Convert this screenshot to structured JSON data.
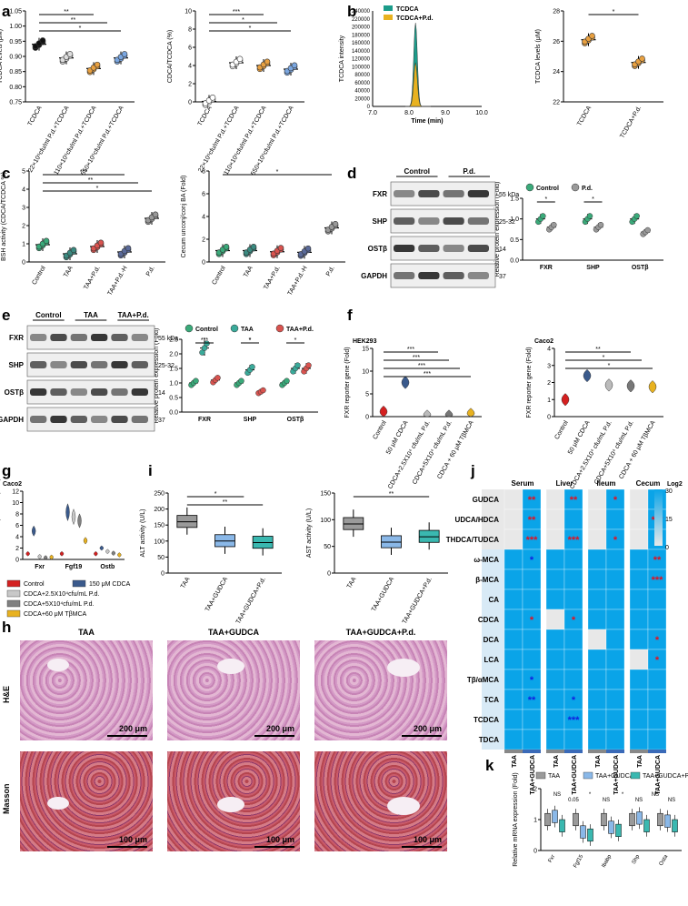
{
  "panels": {
    "a": "a",
    "b": "b",
    "c": "c",
    "d": "d",
    "e": "e",
    "f": "f",
    "g": "g",
    "h": "h",
    "i": "i",
    "j": "j",
    "k": "k"
  },
  "colors": {
    "tcdca_teal": "#1b9c8a",
    "tcdca_pd_yellow": "#e8b220",
    "green": "#3aaa7a",
    "gray": "#9a9a9a",
    "red": "#d9534f",
    "navy": "#3a5a8c",
    "heatmap_high": "#0aa4e8",
    "heatmap_low": "#e8e8e8",
    "sig_red": "#e01020",
    "sig_blue": "#1020e0"
  },
  "chart_data": [
    {
      "id": "a1",
      "type": "scatter",
      "ylabel": "TCDCA levels (μM)",
      "ylim": [
        0.75,
        1.05
      ],
      "yticks": [
        "0.75",
        "0.80",
        "0.85",
        "0.90",
        "0.95",
        "1.00",
        "1.05"
      ],
      "categories": [
        "TCDCA",
        "22×10⁵cfu/ml P.d.+TCDCA",
        "110×10⁵cfu/ml P.d.+TCDCA",
        "550×10⁵cfu/ml P.d.+TCDCA"
      ],
      "series": [
        {
          "values": [
            0.94,
            0.895,
            0.86,
            0.895
          ]
        }
      ],
      "sig": [
        "**",
        "**",
        "*"
      ]
    },
    {
      "id": "a2",
      "type": "scatter",
      "ylabel": "CDCA/TCDCA (%)",
      "ylim": [
        0,
        10
      ],
      "yticks": [
        "0",
        "2",
        "4",
        "6",
        "8",
        "10"
      ],
      "categories": [
        "TCDCA",
        "22×10⁵cfu/ml P.d.+TCDCA",
        "110×10⁵cfu/ml P.d.+TCDCA",
        "550×10⁵cfu/ml P.d.+TCDCA"
      ],
      "series": [
        {
          "values": [
            0.05,
            4.3,
            4.0,
            3.6
          ]
        }
      ],
      "sig": [
        "***",
        "*",
        "*"
      ]
    },
    {
      "id": "b1",
      "type": "area",
      "ylabel": "TCDCA intensity",
      "xlabel": "Time (min)",
      "xticks": [
        "7.0",
        "8.0",
        "9.0",
        "10.0"
      ],
      "yticks": [
        "0",
        "20000",
        "40000",
        "60000",
        "80000",
        "100000",
        "120000",
        "140000",
        "160000",
        "180000",
        "200000",
        "220000",
        "240000"
      ],
      "series": [
        {
          "name": "TCDCA",
          "peak": 210000,
          "center": 8.18
        },
        {
          "name": "TCDCA+P.d.",
          "peak": 110000,
          "center": 8.18
        }
      ]
    },
    {
      "id": "b2",
      "type": "scatter",
      "ylabel": "TCDCA levels (μM)",
      "ylim": [
        22,
        28
      ],
      "yticks": [
        "22",
        "24",
        "26",
        "28"
      ],
      "categories": [
        "TCDCA",
        "TCDCA+P.d."
      ],
      "series": [
        {
          "values": [
            26.1,
            24.6
          ]
        }
      ],
      "sig": [
        "*"
      ]
    },
    {
      "id": "c1",
      "type": "scatter",
      "ylabel": "BSH activity (CDCA/TCDCA %)",
      "ylim": [
        0,
        5
      ],
      "yticks": [
        "0",
        "1",
        "2",
        "3",
        "4",
        "5"
      ],
      "categories": [
        "Control",
        "TAA",
        "TAA+P.d.",
        "TAA+P.d.-H",
        "P.d."
      ],
      "series": [
        {
          "values": [
            0.95,
            0.45,
            0.85,
            0.55,
            2.4
          ]
        }
      ],
      "sig": [
        "***",
        "**",
        "*"
      ]
    },
    {
      "id": "c2",
      "type": "scatter",
      "ylabel": "Cecum unconj/conj BA (Fold)",
      "ylim": [
        0,
        8
      ],
      "yticks": [
        "0",
        "2",
        "4",
        "6",
        "8"
      ],
      "categories": [
        "Control",
        "TAA",
        "TAA+P.d.",
        "TAA+P.d.-H",
        "P.d."
      ],
      "series": [
        {
          "values": [
            1.0,
            1.0,
            0.9,
            0.85,
            3.0
          ]
        }
      ],
      "sig": [
        "*"
      ]
    },
    {
      "id": "d2",
      "type": "scatter",
      "ylabel": "Relative protein expression (Fold)",
      "ylim": [
        0,
        1.5
      ],
      "yticks": [
        "0.0",
        "0.5",
        "1.0",
        "1.5"
      ],
      "categories": [
        "FXR",
        "SHP",
        "OSTβ"
      ],
      "series": [
        {
          "name": "Control",
          "values": [
            1.0,
            1.0,
            1.0
          ]
        },
        {
          "name": "P.d.",
          "values": [
            0.8,
            0.8,
            0.68
          ]
        }
      ],
      "sig": [
        "*",
        "*"
      ]
    },
    {
      "id": "e2",
      "type": "scatter",
      "ylabel": "Relative protein expression (Fold)",
      "ylim": [
        0,
        2.5
      ],
      "yticks": [
        "0.0",
        "0.5",
        "1.0",
        "1.5",
        "2.0",
        "2.5"
      ],
      "categories": [
        "FXR",
        "SHP",
        "OSTβ"
      ],
      "series": [
        {
          "name": "Control",
          "values": [
            1.0,
            1.0,
            1.0
          ]
        },
        {
          "name": "TAA",
          "values": [
            2.2,
            1.45,
            1.5
          ]
        },
        {
          "name": "TAA+P.d.",
          "values": [
            1.1,
            0.7,
            1.5
          ]
        }
      ],
      "sig": [
        "***",
        "*",
        "*",
        "*",
        "*"
      ]
    },
    {
      "id": "f1",
      "type": "violin",
      "title": "HEK293",
      "ylabel": "FXR reporter gene (Fold)",
      "ylim": [
        0,
        15
      ],
      "yticks": [
        "0",
        "5",
        "10",
        "15"
      ],
      "categories": [
        "Control",
        "50 μM CDCA",
        "CDCA+2.5X10⁴ cfu/mL P.d.",
        "CDCA+5X10⁴ cfu/mL P.d.",
        "CDCA + 60 μM TβMCA"
      ],
      "series": [
        {
          "values": [
            1.0,
            7.5,
            0.1,
            0.1,
            0.5
          ]
        }
      ],
      "sig": [
        "***",
        "***",
        "***",
        "***"
      ]
    },
    {
      "id": "f2",
      "type": "violin",
      "title": "Caco2",
      "ylabel": "FXR reporter gene (Fold)",
      "ylim": [
        0,
        4
      ],
      "yticks": [
        "0",
        "1",
        "2",
        "3",
        "4"
      ],
      "categories": [
        "Control",
        "50 μM CDCA",
        "CDCA+2.5X10⁴ cfu/mL P.d.",
        "CDCA+5X10⁴ cfu/mL P.d.",
        "CDCA + 60 μM TβMCA"
      ],
      "series": [
        {
          "values": [
            1.0,
            2.4,
            1.85,
            1.8,
            1.75
          ]
        }
      ],
      "sig": [
        "**",
        "*",
        "*"
      ]
    },
    {
      "id": "g",
      "type": "violin",
      "title": "Caco2",
      "ylabel": "Relative mRNA expression (Fold)",
      "ylim": [
        0,
        12
      ],
      "yticks": [
        "0",
        "2",
        "4",
        "6",
        "8",
        "10",
        "12"
      ],
      "categories": [
        "Fxr",
        "Fgf19",
        "Ostb"
      ],
      "series": [
        {
          "name": "Control",
          "values": [
            1.0,
            1.0,
            1.0
          ]
        },
        {
          "name": "150 μM CDCA",
          "values": [
            5.0,
            8.3,
            2.0
          ]
        },
        {
          "name": "CDCA+2.5X10⁴cfu/mL P.d.",
          "values": [
            0.5,
            7.5,
            1.4
          ]
        },
        {
          "name": "CDCA+5X10⁴cfu/mL P.d.",
          "values": [
            0.3,
            6.8,
            1.1
          ]
        },
        {
          "name": "CDCA+60 μM TβMCA",
          "values": [
            0.4,
            3.3,
            0.8
          ]
        }
      ]
    },
    {
      "id": "i1",
      "type": "box",
      "ylabel": "ALT activity (U/L)",
      "ylim": [
        0,
        250
      ],
      "yticks": [
        "0",
        "50",
        "100",
        "150",
        "200",
        "250"
      ],
      "categories": [
        "TAA",
        "TAA+GUDCA",
        "TAA+GUDCA+P.d."
      ],
      "series": [
        {
          "values": [
            160,
            100,
            95
          ]
        }
      ],
      "sig": [
        "*",
        "**"
      ]
    },
    {
      "id": "i2",
      "type": "box",
      "ylabel": "AST activity (U/L)",
      "ylim": [
        0,
        150
      ],
      "yticks": [
        "0",
        "50",
        "100",
        "150"
      ],
      "categories": [
        "TAA",
        "TAA+GUDCA",
        "TAA+GUDCA+P.d."
      ],
      "series": [
        {
          "values": [
            92,
            58,
            68
          ]
        }
      ],
      "sig": [
        "**"
      ]
    },
    {
      "id": "j",
      "type": "heatmap",
      "columns": [
        "Serum",
        "Liver",
        "Ileum",
        "Cecum"
      ],
      "subcolumns": [
        "TAA",
        "TAA+GUDCA"
      ],
      "rows": [
        "GUDCA",
        "UDCA/HDCA",
        "THDCA/TUDCA",
        "ω-MCA",
        "β-MCA",
        "CA",
        "CDCA",
        "DCA",
        "LCA",
        "Tβ/αMCA",
        "TCA",
        "TCDCA",
        "TDCA"
      ],
      "colorbar": {
        "title": "Log2",
        "ticks": [
          "30",
          "15",
          "0"
        ]
      },
      "marks": [
        {
          "row": "GUDCA",
          "col": "Serum",
          "mark": "**",
          "color": "red"
        },
        {
          "row": "GUDCA",
          "col": "Liver",
          "mark": "**",
          "color": "red"
        },
        {
          "row": "GUDCA",
          "col": "Ileum",
          "mark": "*",
          "color": "red"
        },
        {
          "row": "GUDCA",
          "col": "Cecum",
          "mark": "*",
          "color": "red"
        },
        {
          "row": "UDCA/HDCA",
          "col": "Serum",
          "mark": "**",
          "color": "red"
        },
        {
          "row": "UDCA/HDCA",
          "col": "Cecum",
          "mark": "***",
          "color": "red"
        },
        {
          "row": "THDCA/TUDCA",
          "col": "Serum",
          "mark": "***",
          "color": "red"
        },
        {
          "row": "THDCA/TUDCA",
          "col": "Liver",
          "mark": "***",
          "color": "red"
        },
        {
          "row": "THDCA/TUDCA",
          "col": "Ileum",
          "mark": "*",
          "color": "red"
        },
        {
          "row": "ω-MCA",
          "col": "Serum",
          "mark": "*",
          "color": "blue"
        },
        {
          "row": "ω-MCA",
          "col": "Cecum",
          "mark": "**",
          "color": "red"
        },
        {
          "row": "β-MCA",
          "col": "Cecum",
          "mark": "***",
          "color": "red"
        },
        {
          "row": "CDCA",
          "col": "Serum",
          "mark": "*",
          "color": "red"
        },
        {
          "row": "CDCA",
          "col": "Liver",
          "mark": "*",
          "color": "red"
        },
        {
          "row": "DCA",
          "col": "Cecum",
          "mark": "*",
          "color": "red"
        },
        {
          "row": "LCA",
          "col": "Cecum",
          "mark": "*",
          "color": "red"
        },
        {
          "row": "Tβ/αMCA",
          "col": "Serum",
          "mark": "*",
          "color": "blue"
        },
        {
          "row": "TCA",
          "col": "Serum",
          "mark": "**",
          "color": "blue"
        },
        {
          "row": "TCA",
          "col": "Liver",
          "mark": "*",
          "color": "blue"
        },
        {
          "row": "TCDCA",
          "col": "Liver",
          "mark": "***",
          "color": "blue"
        }
      ]
    },
    {
      "id": "k",
      "type": "box",
      "ylabel": "Relative mRNA expression (Fold)",
      "ylim": [
        0,
        2
      ],
      "yticks": [
        "0",
        "1",
        "2"
      ],
      "categories": [
        "Fxr",
        "Fgf15",
        "Ibabp",
        "Shp",
        "Osta"
      ],
      "series": [
        {
          "name": "TAA",
          "values": [
            1.0,
            1.0,
            1.0,
            1.0,
            1.0
          ]
        },
        {
          "name": "TAA+GUDCA",
          "values": [
            1.1,
            0.6,
            0.75,
            1.05,
            0.95
          ]
        },
        {
          "name": "TAA+GUDCA+P.d.",
          "values": [
            0.8,
            0.5,
            0.65,
            0.8,
            0.8
          ]
        }
      ],
      "sig": [
        "NS",
        "0.05",
        "*",
        "NS",
        "*",
        "NS",
        "NS",
        "NS"
      ]
    }
  ],
  "blots": {
    "d": {
      "groups": [
        "Control",
        "P.d."
      ],
      "bands": [
        "FXR",
        "SHP",
        "OSTβ",
        "GAPDH"
      ],
      "kda": [
        "55 kDa",
        "25-32",
        "14",
        "37"
      ]
    },
    "e": {
      "groups": [
        "Control",
        "TAA",
        "TAA+P.d."
      ],
      "bands": [
        "FXR",
        "SHP",
        "OSTβ",
        "GAPDH"
      ],
      "kda": [
        "55 kDa",
        "25-32",
        "14",
        "37"
      ]
    }
  },
  "histology": {
    "columns": [
      "TAA",
      "TAA+GUDCA",
      "TAA+GUDCA+P.d."
    ],
    "rows": [
      "H&E",
      "Masson"
    ],
    "scale_he": "200 μm",
    "scale_masson": "100 μm"
  },
  "legends": {
    "b": [
      "TCDCA",
      "TCDCA+P.d."
    ],
    "d": [
      "Control",
      "P.d."
    ],
    "e": [
      "Control",
      "TAA",
      "TAA+P.d."
    ],
    "g": [
      "Control",
      "150 μM CDCA",
      "CDCA+2.5X10⁴cfu/mL P.d.",
      "CDCA+5X10⁴cfu/mL P.d.",
      "CDCA+60 μM TβMCA"
    ],
    "k": [
      "TAA",
      "TAA+GUDCA",
      "TAA+GUDCA+P.d."
    ]
  }
}
